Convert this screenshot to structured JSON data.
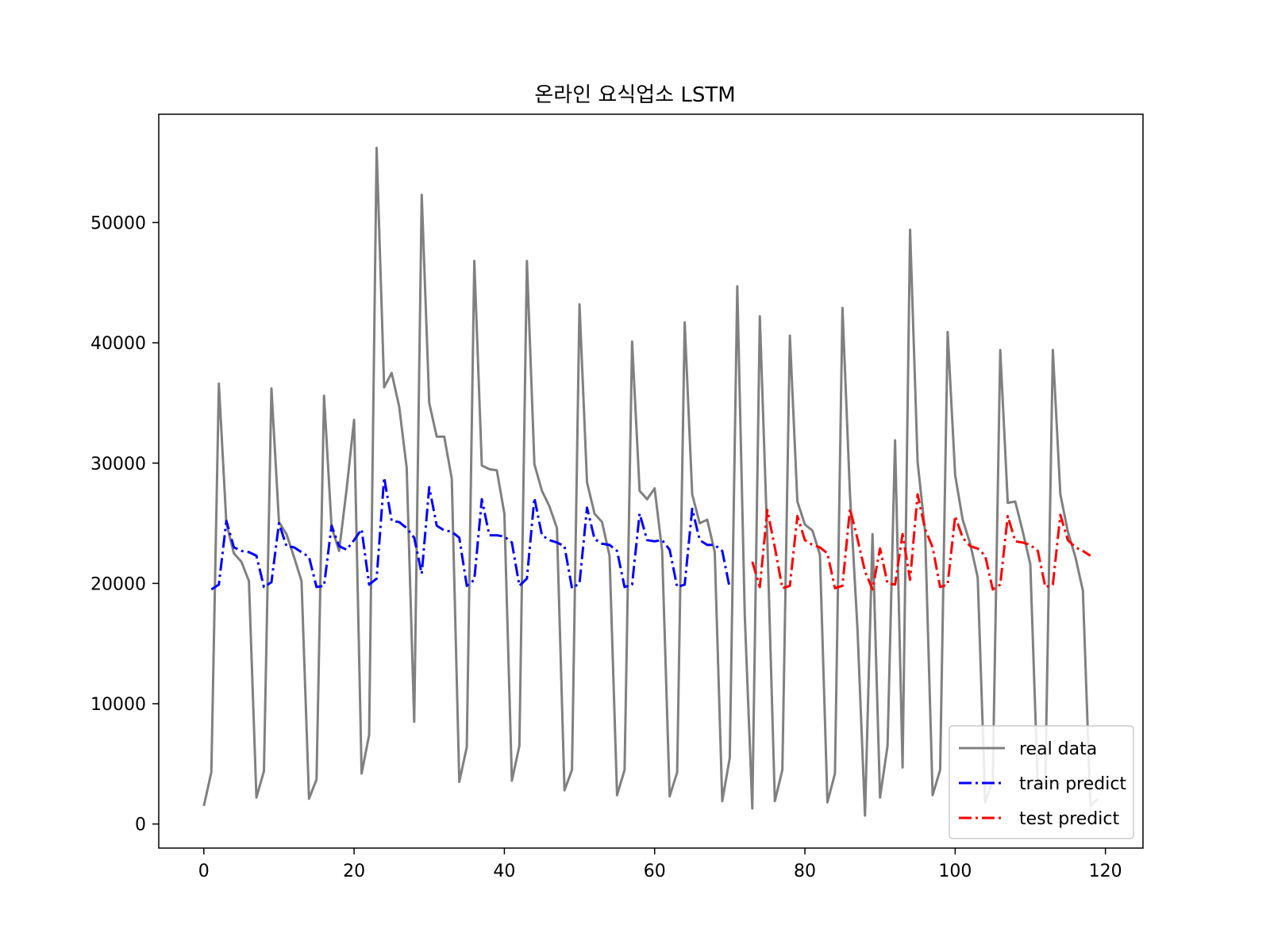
{
  "chart_data": {
    "type": "line",
    "title": "온라인 요식업소 LSTM",
    "xlabel": "",
    "ylabel": "",
    "xlim": [
      -6,
      125
    ],
    "ylim": [
      -2000,
      59000
    ],
    "xticks": [
      0,
      20,
      40,
      60,
      80,
      100,
      120
    ],
    "yticks": [
      0,
      10000,
      20000,
      30000,
      40000,
      50000
    ],
    "grid": false,
    "legend_position": "lower-right",
    "series": [
      {
        "name": "real data",
        "color": "#808080",
        "style": "solid",
        "x_start": 0,
        "values": [
          1500,
          4300,
          36600,
          25000,
          22500,
          21800,
          20200,
          2200,
          4400,
          36200,
          25100,
          24100,
          22200,
          20200,
          2100,
          3700,
          35600,
          24700,
          22700,
          27800,
          33600,
          4200,
          7400,
          56200,
          36300,
          37500,
          34700,
          29600,
          8500,
          52300,
          35000,
          32200,
          32200,
          28700,
          3500,
          6400,
          46800,
          29800,
          29500,
          29400,
          25800,
          3600,
          6500,
          46800,
          29900,
          27700,
          26400,
          24600,
          2800,
          4500,
          43200,
          28400,
          25800,
          25100,
          22300,
          2400,
          4500,
          40100,
          27700,
          27000,
          27900,
          22700,
          2300,
          4300,
          41700,
          27400,
          25000,
          25300,
          22600,
          1900,
          5500,
          44700,
          17300,
          1300,
          42200,
          23600,
          1900,
          4500,
          40600,
          26800,
          24900,
          24400,
          22400,
          1800,
          4200,
          42900,
          27400,
          16200,
          700,
          24100,
          2200,
          6500,
          31900,
          4700,
          49400,
          30100,
          24300,
          2400,
          4500,
          40900,
          29000,
          25300,
          23300,
          20500,
          1800,
          3600,
          39400,
          26700,
          26800,
          24300,
          21600,
          3100,
          3600,
          39400,
          27400,
          24300,
          22200,
          19400,
          1500,
          2100
        ]
      },
      {
        "name": "train predict",
        "color": "#0000ff",
        "style": "dashdot",
        "x_start": 1,
        "values": [
          19500,
          19900,
          25200,
          23000,
          22700,
          22600,
          22300,
          19700,
          20100,
          25000,
          23100,
          23000,
          22600,
          22200,
          19700,
          19800,
          24800,
          23100,
          22800,
          23600,
          24500,
          19900,
          20400,
          28800,
          25200,
          25100,
          24600,
          23800,
          20800,
          28000,
          24800,
          24400,
          24300,
          23800,
          19800,
          20300,
          27000,
          24000,
          24000,
          23900,
          23400,
          19800,
          20400,
          27100,
          24000,
          23600,
          23400,
          23100,
          19600,
          20000,
          26300,
          23700,
          23300,
          23200,
          22700,
          19700,
          19900,
          25800,
          23600,
          23500,
          23600,
          22800,
          19700,
          19900,
          26200,
          23600,
          23200,
          23200,
          22700,
          19600
        ]
      },
      {
        "name": "test predict",
        "color": "#ff0000",
        "style": "dashdot",
        "x_start": 73,
        "values": [
          21800,
          19700,
          26100,
          23000,
          19600,
          19800,
          25600,
          23600,
          23200,
          23000,
          22500,
          19600,
          19800,
          26200,
          23700,
          21000,
          19500,
          22900,
          20000,
          19900,
          24100,
          20300,
          27400,
          24500,
          23000,
          19700,
          19900,
          25600,
          23800,
          23100,
          22900,
          22300,
          19500,
          19900,
          25600,
          23500,
          23400,
          23200,
          22700,
          19700,
          19900,
          25700,
          23600,
          23000,
          22700,
          22300
        ]
      }
    ]
  }
}
